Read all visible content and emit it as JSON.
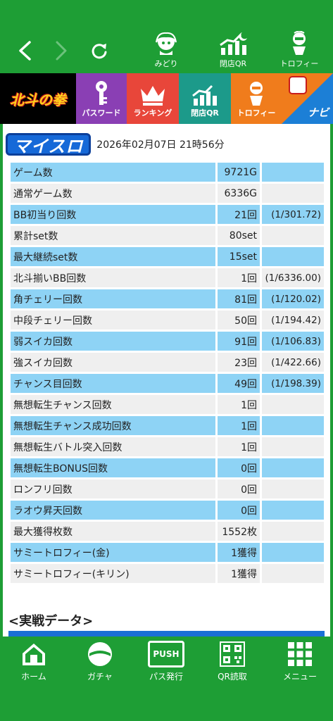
{
  "topbar": {
    "back_icon": "chevron-left-icon",
    "forward_icon": "chevron-right-icon",
    "reload_icon": "reload-icon",
    "items": [
      {
        "label": "みどり",
        "icon": "character-icon"
      },
      {
        "label": "閉店QR",
        "icon": "chart-moon-icon"
      },
      {
        "label": "トロフィー",
        "icon": "trophy-figure-icon"
      }
    ]
  },
  "tiles": [
    {
      "label": "北斗の拳",
      "color": "#000000"
    },
    {
      "label": "パスワード",
      "color": "#8a3fb4"
    },
    {
      "label": "ランキング",
      "color": "#e8463a"
    },
    {
      "label": "閉店QR",
      "color": "#1c9a8a"
    },
    {
      "label": "トロフィー",
      "color": "#f07c1c"
    },
    {
      "label": "ナビ",
      "color": "#1c7fd6"
    }
  ],
  "header": {
    "brand": "マイスロ",
    "datetime": "2026年02月07日 21時56分"
  },
  "rows": [
    {
      "label": "ゲーム数",
      "value": "9721G",
      "prob": ""
    },
    {
      "label": "通常ゲーム数",
      "value": "6336G",
      "prob": ""
    },
    {
      "label": "BB初当り回数",
      "value": "21回",
      "prob": "(1/301.72)"
    },
    {
      "label": "累計set数",
      "value": "80set",
      "prob": ""
    },
    {
      "label": "最大継続set数",
      "value": "15set",
      "prob": ""
    },
    {
      "label": "北斗揃いBB回数",
      "value": "1回",
      "prob": "(1/6336.00)"
    },
    {
      "label": "角チェリー回数",
      "value": "81回",
      "prob": "(1/120.02)"
    },
    {
      "label": "中段チェリー回数",
      "value": "50回",
      "prob": "(1/194.42)"
    },
    {
      "label": "弱スイカ回数",
      "value": "91回",
      "prob": "(1/106.83)"
    },
    {
      "label": "強スイカ回数",
      "value": "23回",
      "prob": "(1/422.66)"
    },
    {
      "label": "チャンス目回数",
      "value": "49回",
      "prob": "(1/198.39)"
    },
    {
      "label": "無想転生チャンス回数",
      "value": "1回",
      "prob": ""
    },
    {
      "label": "無想転生チャンス成功回数",
      "value": "1回",
      "prob": ""
    },
    {
      "label": "無想転生バトル突入回数",
      "value": "1回",
      "prob": ""
    },
    {
      "label": "無想転生BONUS回数",
      "value": "0回",
      "prob": ""
    },
    {
      "label": "ロンフリ回数",
      "value": "0回",
      "prob": ""
    },
    {
      "label": "ラオウ昇天回数",
      "value": "0回",
      "prob": ""
    },
    {
      "label": "最大獲得枚数",
      "value": "1552枚",
      "prob": ""
    },
    {
      "label": "サミートロフィー(金)",
      "value": "1獲得",
      "prob": ""
    },
    {
      "label": "サミートロフィー(キリン)",
      "value": "1獲得",
      "prob": ""
    }
  ],
  "section": {
    "title": "<実戦データ>"
  },
  "bottombar": [
    {
      "label": "ホーム",
      "icon": "home-icon"
    },
    {
      "label": "ガチャ",
      "icon": "gacha-icon"
    },
    {
      "label": "パス発行",
      "icon": "push-icon",
      "badge": "PUSH"
    },
    {
      "label": "QR読取",
      "icon": "qr-icon"
    },
    {
      "label": "メニュー",
      "icon": "menu-grid-icon"
    }
  ]
}
